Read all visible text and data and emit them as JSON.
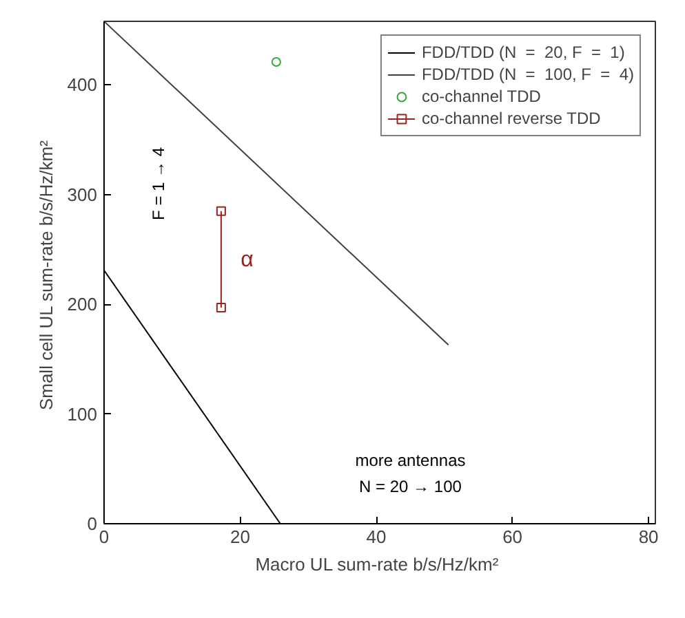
{
  "chart_data": {
    "type": "line",
    "xlabel": "Macro UL sum-rate  b/s/Hz/km²",
    "ylabel": "Small cell UL sum-rate  b/s/Hz/km²",
    "xlim": [
      0,
      81
    ],
    "ylim": [
      0,
      458
    ],
    "xticks": [
      0,
      20,
      40,
      60,
      80
    ],
    "yticks": [
      0,
      100,
      200,
      300,
      400
    ],
    "series": [
      {
        "name": "FDD/TDD (N  =  20, F  =  1)",
        "color": "#000000",
        "x": [
          0,
          25.9
        ],
        "values": [
          231,
          0
        ],
        "marker": "none"
      },
      {
        "name": "FDD/TDD (N  =  100, F  =  4)",
        "color": "#404040",
        "x": [
          0,
          50.6
        ],
        "values": [
          458,
          163
        ],
        "marker": "none"
      },
      {
        "name": "co-channel TDD",
        "type": "scatter",
        "color": "#33aa33",
        "x": [
          25.3
        ],
        "values": [
          421
        ],
        "marker": "circle"
      },
      {
        "name": "co-channel reverse TDD",
        "color": "#a02020",
        "x": [
          17.2,
          17.2
        ],
        "values": [
          285,
          197
        ],
        "marker": "square"
      }
    ],
    "annotations": [
      "F = 1 → 4",
      "α",
      "more antennas",
      "N = 20 → 100"
    ],
    "legend": "top right",
    "grid": false
  }
}
